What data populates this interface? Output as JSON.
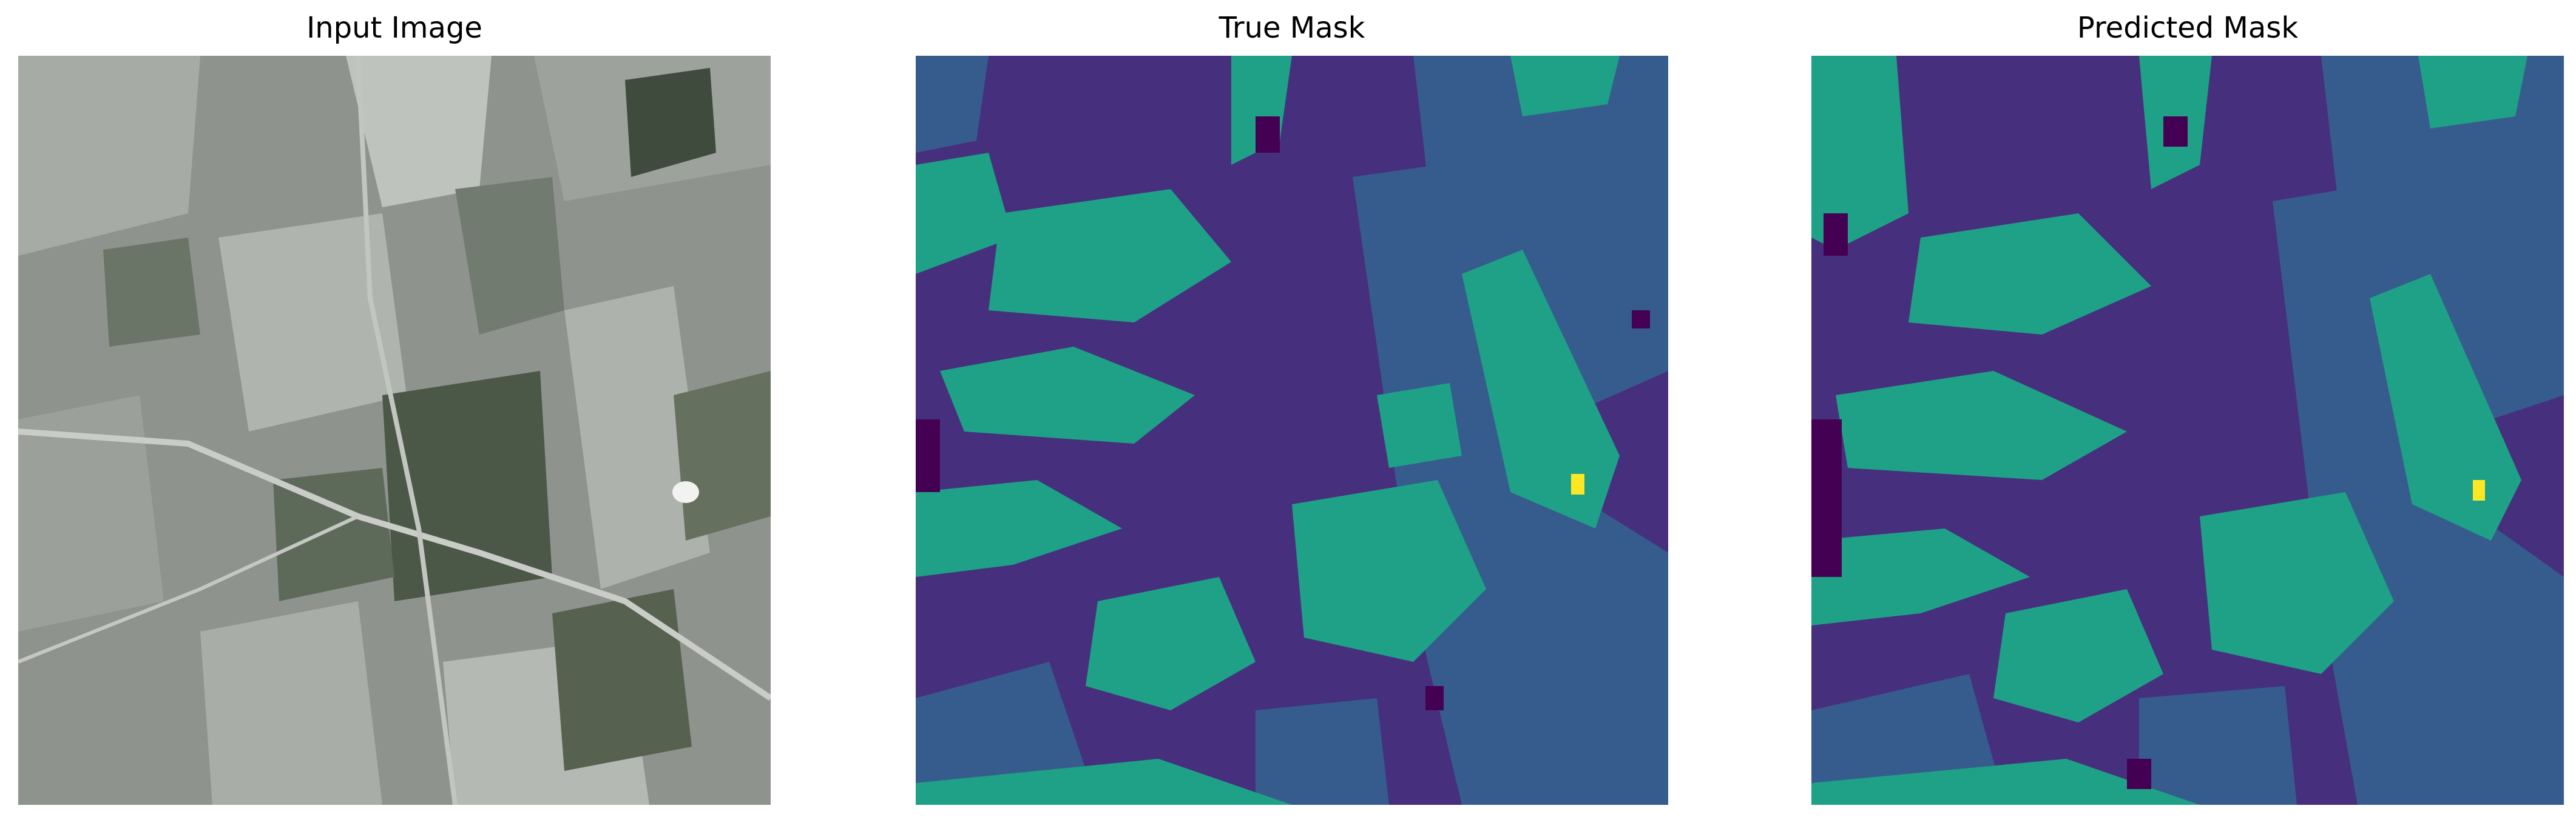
{
  "panels": [
    {
      "title": "Input Image",
      "kind": "satellite-photo"
    },
    {
      "title": "True Mask",
      "kind": "segmentation-mask"
    },
    {
      "title": "Predicted Mask",
      "kind": "segmentation-mask"
    }
  ],
  "mask_palette": {
    "class_0": "#440154",
    "class_1": "#46307e",
    "class_2": "#365c8d",
    "class_3": "#1fa187",
    "class_4": "#fde725"
  },
  "photo_palette": {
    "base": "#8f938e",
    "light": "#b3b7b2",
    "dark": "#4b5848",
    "road": "#c9ccc7"
  }
}
